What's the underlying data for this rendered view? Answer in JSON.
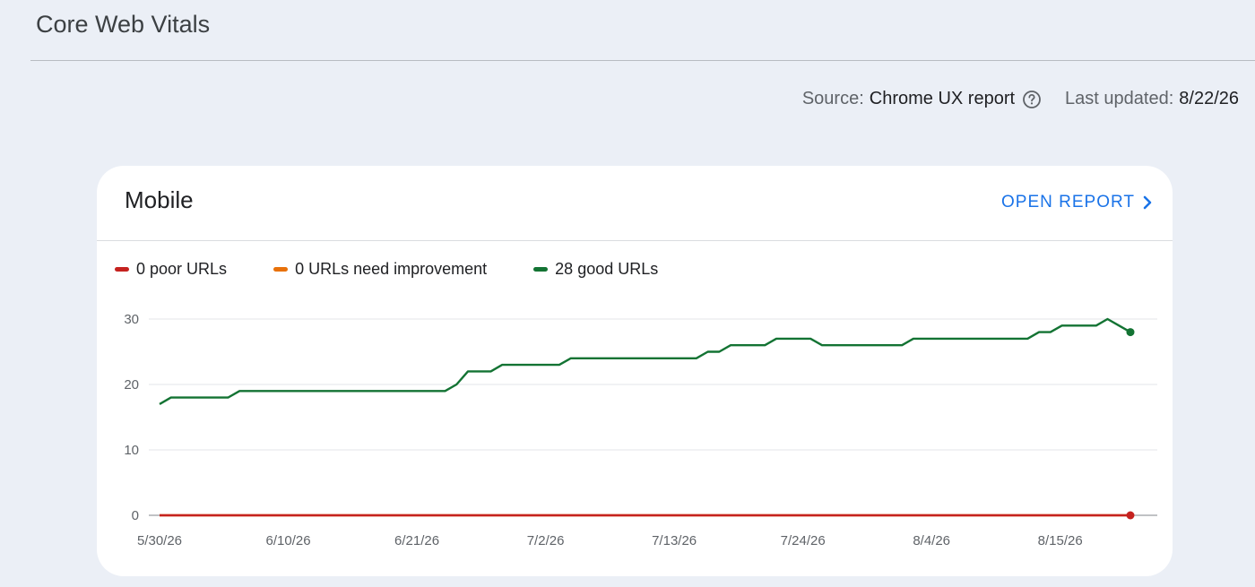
{
  "header": {
    "title": "Core Web Vitals"
  },
  "source": {
    "label": "Source:",
    "value": "Chrome UX report",
    "help_icon": "help-circle-icon",
    "updated_label": "Last updated:",
    "updated_value": "8/22/26"
  },
  "card": {
    "title": "Mobile",
    "open_report": "OPEN REPORT",
    "open_report_icon": "chevron-right-icon"
  },
  "colors": {
    "poor": "#c5221f",
    "needs_improvement": "#e8710a",
    "good": "#137333",
    "link": "#1a73e8"
  },
  "chart_data": {
    "type": "line",
    "ylim": [
      0,
      30
    ],
    "yticks": [
      0,
      10,
      20,
      30
    ],
    "xtick_labels": [
      "5/30/26",
      "6/10/26",
      "6/21/26",
      "7/2/26",
      "7/13/26",
      "7/24/26",
      "8/4/26",
      "8/15/26"
    ],
    "x_start": "5/30/26",
    "x_end": "8/21/26",
    "grid": true,
    "legend_position": "top-left",
    "series": [
      {
        "name": "0 poor URLs",
        "key": "poor",
        "color": "#c5221f",
        "values": [
          0,
          0,
          0,
          0,
          0,
          0,
          0,
          0,
          0,
          0,
          0,
          0,
          0,
          0,
          0,
          0,
          0,
          0,
          0,
          0,
          0,
          0,
          0,
          0,
          0,
          0,
          0,
          0,
          0,
          0,
          0,
          0,
          0,
          0,
          0,
          0,
          0,
          0,
          0,
          0,
          0,
          0,
          0,
          0,
          0,
          0,
          0,
          0,
          0,
          0,
          0,
          0,
          0,
          0,
          0,
          0,
          0,
          0,
          0,
          0,
          0,
          0,
          0,
          0,
          0,
          0,
          0,
          0,
          0,
          0,
          0,
          0,
          0,
          0,
          0,
          0,
          0,
          0,
          0,
          0,
          0,
          0,
          0,
          0
        ]
      },
      {
        "name": "0 URLs need improvement",
        "key": "needs_improvement",
        "color": "#e8710a",
        "values": [
          0,
          0,
          0,
          0,
          0,
          0,
          0,
          0,
          0,
          0,
          0,
          0,
          0,
          0,
          0,
          0,
          0,
          0,
          0,
          0,
          0,
          0,
          0,
          0,
          0,
          0,
          0,
          0,
          0,
          0,
          0,
          0,
          0,
          0,
          0,
          0,
          0,
          0,
          0,
          0,
          0,
          0,
          0,
          0,
          0,
          0,
          0,
          0,
          0,
          0,
          0,
          0,
          0,
          0,
          0,
          0,
          0,
          0,
          0,
          0,
          0,
          0,
          0,
          0,
          0,
          0,
          0,
          0,
          0,
          0,
          0,
          0,
          0,
          0,
          0,
          0,
          0,
          0,
          0,
          0,
          0,
          0,
          0,
          0
        ]
      },
      {
        "name": "28 good URLs",
        "key": "good",
        "color": "#137333",
        "values": [
          17,
          18,
          18,
          18,
          18,
          18,
          18,
          19,
          19,
          19,
          19,
          19,
          19,
          19,
          19,
          19,
          19,
          19,
          19,
          19,
          19,
          19,
          19,
          19,
          19,
          19,
          20,
          22,
          22,
          22,
          23,
          23,
          23,
          23,
          23,
          23,
          24,
          24,
          24,
          24,
          24,
          24,
          24,
          24,
          24,
          24,
          24,
          24,
          25,
          25,
          26,
          26,
          26,
          26,
          27,
          27,
          27,
          27,
          26,
          26,
          26,
          26,
          26,
          26,
          26,
          26,
          27,
          27,
          27,
          27,
          27,
          27,
          27,
          27,
          27,
          27,
          27,
          28,
          28,
          29,
          29,
          29,
          29,
          30,
          29,
          28
        ]
      }
    ]
  }
}
